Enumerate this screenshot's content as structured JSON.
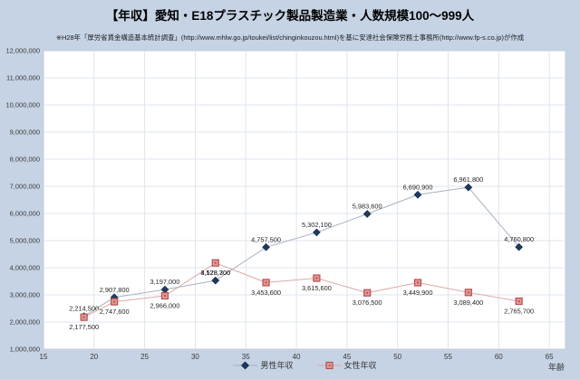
{
  "chart_data": {
    "type": "line",
    "title": "【年収】愛知・E18プラスチック製品製造業・人数規模100〜999人",
    "subtitle": "※H28年「厚労省賃金構造基本統計調査」(http://www.mhlw.go.jp/toukei/list/chinginkouzou.html)を基に安達社会保険労務士事務所(http://www.fp-s.co.jp)が作成",
    "xlabel": "年齢",
    "x": [
      19,
      22,
      27,
      32,
      37,
      42,
      47,
      52,
      57,
      62
    ],
    "series": [
      {
        "name": "男性年収",
        "values": [
          2214500,
          2907800,
          3197000,
          3528700,
          4757500,
          5302100,
          5983600,
          6690900,
          6961800,
          4760800
        ],
        "marker": "diamond",
        "label_position": "above",
        "line_color": "#a8b2bd",
        "marker_color": "#1f3a60",
        "marker_border": "#17304f"
      },
      {
        "name": "女性年収",
        "values": [
          2177500,
          2747600,
          2966000,
          4178300,
          3453600,
          3615600,
          3076500,
          3449900,
          3089400,
          2765700
        ],
        "marker": "square",
        "label_position": "below",
        "line_color": "#dba8a6",
        "marker_color": "#e49997",
        "marker_border": "#b4504e"
      }
    ],
    "x_axis": {
      "min": 15,
      "max": 66.6,
      "tick_min": 15,
      "tick_max": 65,
      "tick_step": 5
    },
    "y_axis": {
      "min": 1000000,
      "max": 12000000,
      "tick_step": 1000000
    },
    "grid": true,
    "legend_position": "bottom"
  },
  "colors": {
    "background": "#c6d3e4",
    "plot_background": "#ffffff",
    "gridline": "#dfe5ec",
    "plot_border": "#c3cdda",
    "axis_text": "#3a3a3a",
    "data_label_text": "#262626"
  }
}
